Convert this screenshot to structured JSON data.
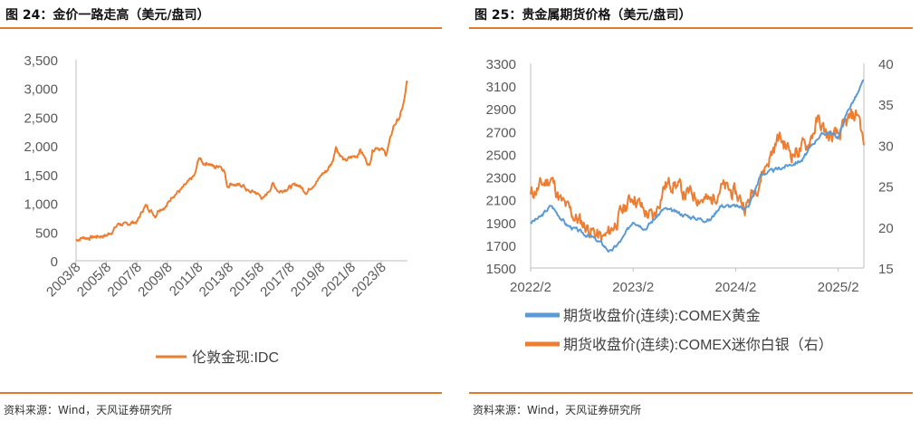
{
  "colors": {
    "orange": "#ed7d31",
    "blue": "#5b9bd5",
    "rule": "#e07a2e",
    "grid": "#d9d9d9"
  },
  "left": {
    "title": "图 24：金价一路走高（美元/盘司）",
    "source": "资料来源：Wind，天风证券研究所",
    "chart_data": {
      "type": "line",
      "title": "金价一路走高（美元/盘司）",
      "xlabel": "",
      "ylabel": "",
      "ylim": [
        0,
        3500
      ],
      "yticks": [
        "0",
        "500",
        "1,000",
        "1,500",
        "2,000",
        "2,500",
        "3,000",
        "3,500"
      ],
      "xticks": [
        "2003/8",
        "2005/8",
        "2007/8",
        "2009/8",
        "2011/8",
        "2013/8",
        "2015/8",
        "2017/8",
        "2019/8",
        "2021/8",
        "2023/8"
      ],
      "xlim": [
        2003.6,
        2025.3
      ],
      "grid": false,
      "series": [
        {
          "name": "伦敦金现:IDC",
          "x": [
            2003.6,
            2004.0,
            2004.5,
            2005.0,
            2005.6,
            2006.0,
            2006.4,
            2006.8,
            2007.2,
            2007.6,
            2008.0,
            2008.2,
            2008.8,
            2009.0,
            2009.5,
            2009.9,
            2010.5,
            2011.0,
            2011.4,
            2011.65,
            2011.9,
            2012.3,
            2012.7,
            2013.0,
            2013.3,
            2013.5,
            2013.8,
            2014.2,
            2014.5,
            2014.9,
            2015.3,
            2015.9,
            2016.5,
            2016.9,
            2017.3,
            2017.6,
            2018.1,
            2018.7,
            2019.0,
            2019.5,
            2019.7,
            2020.0,
            2020.4,
            2020.6,
            2020.8,
            2021.2,
            2021.6,
            2022.0,
            2022.2,
            2022.8,
            2023.0,
            2023.3,
            2023.7,
            2023.9,
            2024.1,
            2024.4,
            2024.8,
            2024.95,
            2025.1,
            2025.25
          ],
          "values": [
            360,
            400,
            400,
            425,
            440,
            520,
            650,
            620,
            660,
            680,
            900,
            960,
            780,
            900,
            940,
            1130,
            1240,
            1380,
            1500,
            1800,
            1700,
            1700,
            1620,
            1670,
            1580,
            1300,
            1350,
            1300,
            1320,
            1200,
            1200,
            1080,
            1340,
            1200,
            1250,
            1280,
            1330,
            1190,
            1290,
            1420,
            1510,
            1560,
            1730,
            2000,
            1880,
            1730,
            1800,
            1830,
            1940,
            1650,
            1920,
            1990,
            1920,
            1850,
            2040,
            2350,
            2500,
            2650,
            2800,
            3100
          ]
        }
      ],
      "legend": "bottom"
    }
  },
  "right": {
    "title": "图 25：贵金属期货价格（美元/盘司）",
    "source": "资料来源：Wind，天风证券研究所",
    "chart_data": {
      "type": "line",
      "title": "贵金属期货价格（美元/盘司）",
      "ylim": [
        1500,
        3300
      ],
      "yticks": [
        "1500",
        "1700",
        "1900",
        "2100",
        "2300",
        "2500",
        "2700",
        "2900",
        "3100",
        "3300"
      ],
      "y2lim": [
        15,
        40
      ],
      "y2ticks": [
        "15",
        "20",
        "25",
        "30",
        "35",
        "40"
      ],
      "xticks": [
        "2022/2",
        "2023/2",
        "2024/2",
        "2025/2"
      ],
      "xlim": [
        2022.0,
        2025.25
      ],
      "grid": false,
      "series": [
        {
          "name": "期货收盘价(连续):COMEX黄金",
          "axis": "left",
          "x": [
            2022.0,
            2022.1,
            2022.2,
            2022.35,
            2022.5,
            2022.6,
            2022.7,
            2022.78,
            2022.9,
            2023.0,
            2023.12,
            2023.3,
            2023.45,
            2023.6,
            2023.75,
            2023.85,
            2024.0,
            2024.12,
            2024.25,
            2024.35,
            2024.5,
            2024.65,
            2024.8,
            2024.9,
            2025.0,
            2025.1,
            2025.2,
            2025.25
          ],
          "values": [
            1900,
            1950,
            2050,
            1880,
            1810,
            1770,
            1710,
            1640,
            1760,
            1920,
            1850,
            2020,
            1980,
            1940,
            1920,
            2050,
            2040,
            2030,
            2330,
            2350,
            2400,
            2450,
            2650,
            2700,
            2650,
            2900,
            3050,
            3150
          ]
        },
        {
          "name": "期货收盘价(连续):COMEX迷你白银（右）",
          "axis": "right",
          "x": [
            2022.0,
            2022.1,
            2022.2,
            2022.3,
            2022.45,
            2022.6,
            2022.7,
            2022.75,
            2022.85,
            2023.0,
            2023.1,
            2023.2,
            2023.3,
            2023.4,
            2023.5,
            2023.6,
            2023.75,
            2023.85,
            2024.0,
            2024.1,
            2024.2,
            2024.35,
            2024.42,
            2024.55,
            2024.7,
            2024.8,
            2024.9,
            2025.0,
            2025.1,
            2025.2,
            2025.25
          ],
          "values": [
            24,
            25,
            26,
            23,
            21,
            19.5,
            18.5,
            19,
            21,
            24,
            22,
            21,
            25,
            25.5,
            24,
            24,
            23,
            25,
            24,
            22.5,
            25,
            29,
            31,
            29,
            30,
            33,
            31,
            31,
            33,
            34,
            30
          ]
        }
      ],
      "legend": "bottom"
    }
  }
}
